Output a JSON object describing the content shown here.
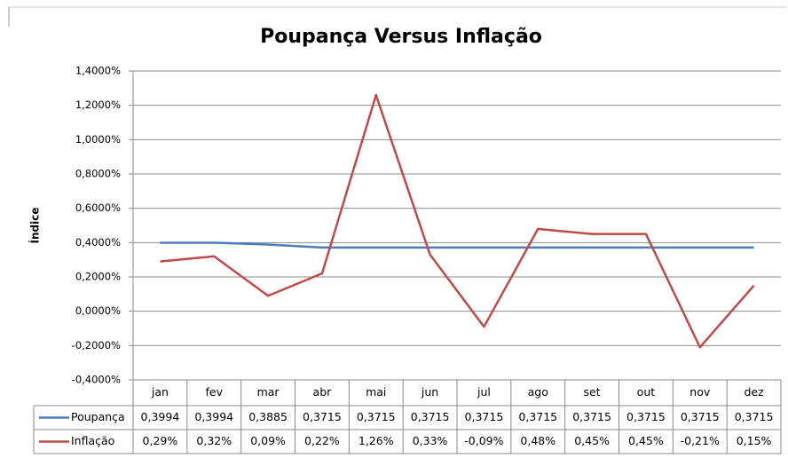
{
  "chart_data": {
    "type": "line",
    "title": "Poupança Versus Inflação",
    "y_label": "Índice",
    "categories": [
      "jan",
      "fev",
      "mar",
      "abr",
      "mai",
      "jun",
      "jul",
      "ago",
      "set",
      "out",
      "nov",
      "dez"
    ],
    "series": [
      {
        "name": "Poupança",
        "color": "#4a7ebb",
        "values": [
          0.3994,
          0.3994,
          0.3885,
          0.3715,
          0.3715,
          0.3715,
          0.3715,
          0.3715,
          0.3715,
          0.3715,
          0.3715,
          0.3715
        ],
        "value_labels": [
          "0,3994",
          "0,3994",
          "0,3885",
          "0,3715",
          "0,3715",
          "0,3715",
          "0,3715",
          "0,3715",
          "0,3715",
          "0,3715",
          "0,3715",
          "0,3715"
        ]
      },
      {
        "name": "Inflação",
        "color": "#be4b48",
        "values": [
          0.29,
          0.32,
          0.09,
          0.22,
          1.26,
          0.33,
          -0.09,
          0.48,
          0.45,
          0.45,
          -0.21,
          0.15
        ],
        "value_labels": [
          "0,29%",
          "0,32%",
          "0,09%",
          "0,22%",
          "1,26%",
          "0,33%",
          "-0,09%",
          "0,48%",
          "0,45%",
          "0,45%",
          "-0,21%",
          "0,15%"
        ]
      }
    ],
    "ylim": [
      -0.4,
      1.4
    ],
    "yticks": [
      {
        "value": -0.4,
        "label": "-0,4000%"
      },
      {
        "value": -0.2,
        "label": "-0,2000%"
      },
      {
        "value": 0,
        "label": "0,0000%"
      },
      {
        "value": 0.2,
        "label": "0,2000%"
      },
      {
        "value": 0.4,
        "label": "0,4000%"
      },
      {
        "value": 0.6,
        "label": "0,6000%"
      },
      {
        "value": 0.8,
        "label": "0,8000%"
      },
      {
        "value": 1.0,
        "label": "1,0000%"
      },
      {
        "value": 1.2,
        "label": "1,2000%"
      },
      {
        "value": 1.4,
        "label": "1,4000%"
      }
    ],
    "grid": true
  }
}
